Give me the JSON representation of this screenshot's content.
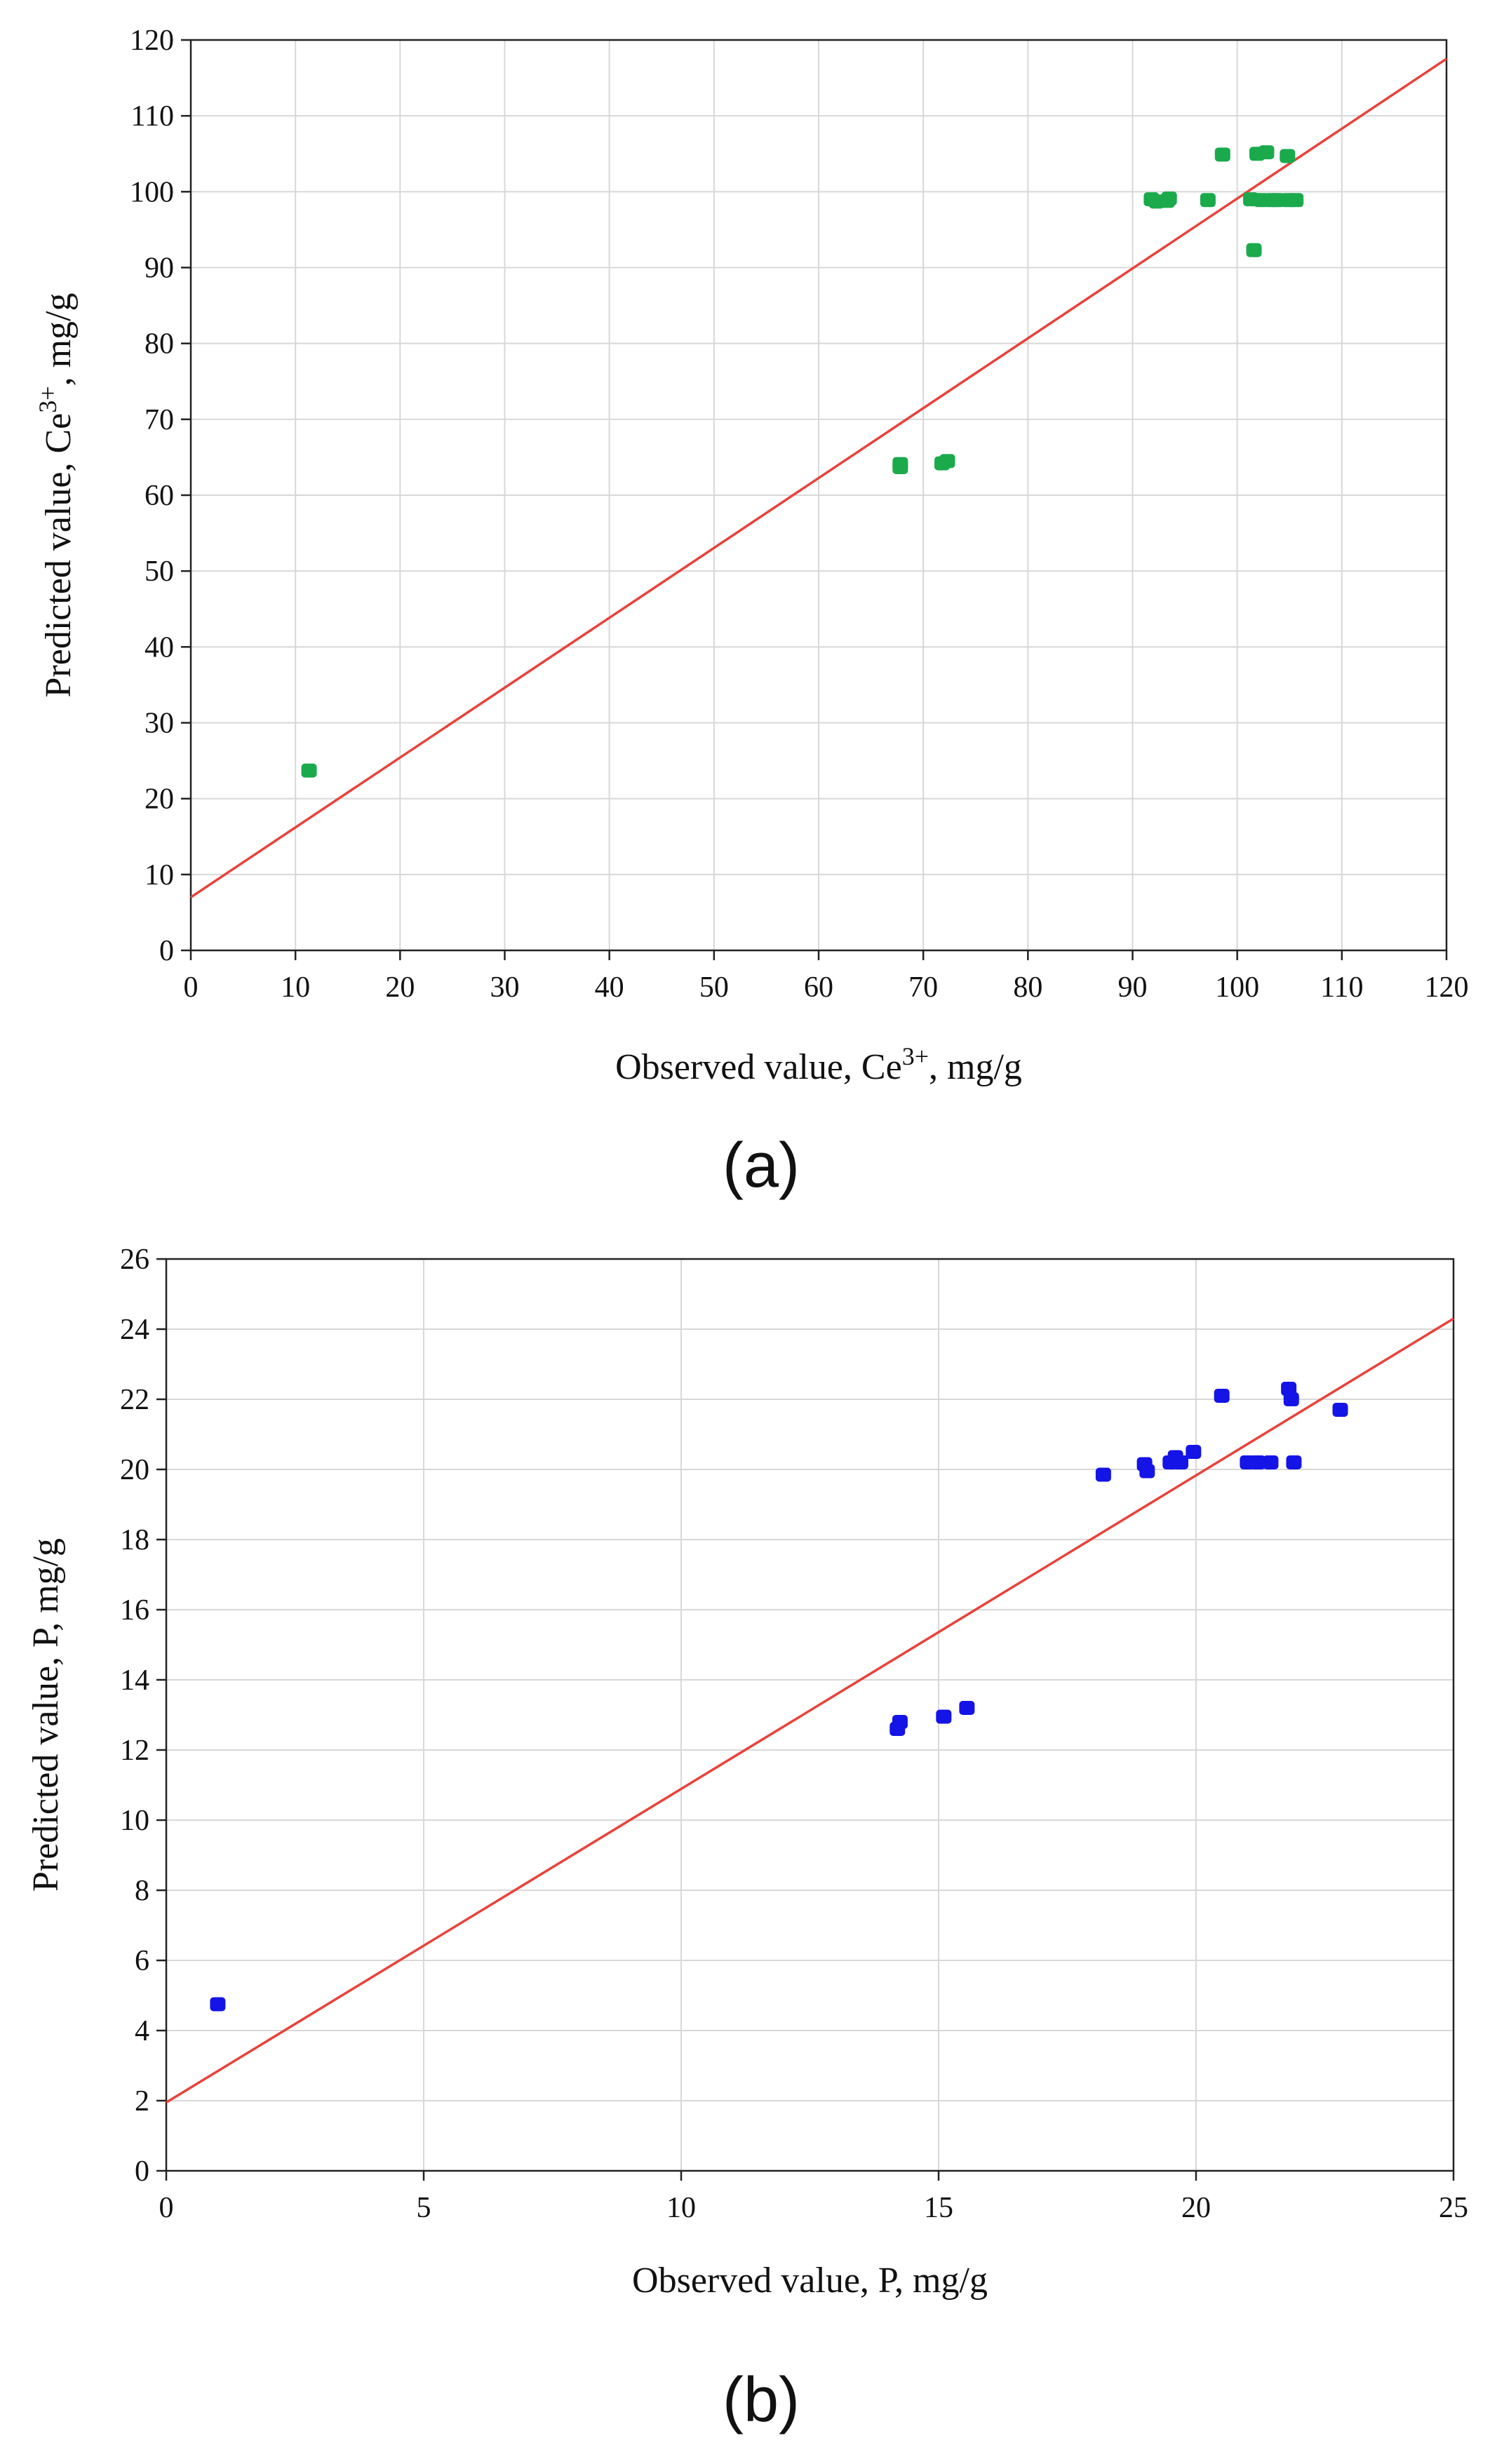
{
  "chart_data": [
    {
      "type": "scatter",
      "panel_label": "(a)",
      "title": "",
      "xlabel_main": "Observed value, Ce",
      "xlabel_sup": "3+",
      "xlabel_tail": ", mg/g",
      "ylabel_main": "Predicted value, Ce",
      "ylabel_sup": "3+",
      "ylabel_tail": ", mg/g",
      "xlim": [
        0,
        120
      ],
      "ylim": [
        0,
        120
      ],
      "xticks": [
        0,
        10,
        20,
        30,
        40,
        50,
        60,
        70,
        80,
        90,
        100,
        110,
        120
      ],
      "yticks": [
        0,
        10,
        20,
        30,
        40,
        50,
        60,
        70,
        80,
        90,
        100,
        110,
        120
      ],
      "grid": true,
      "point_color": "#1aaa4b",
      "line_color": "#e8423a",
      "fit_line": {
        "intercept": 7.0,
        "slope": 0.921
      },
      "series": [
        {
          "name": "Ce3+",
          "points": [
            [
              11.3,
              23.7
            ],
            [
              67.8,
              63.7
            ],
            [
              67.8,
              64.1
            ],
            [
              71.8,
              64.2
            ],
            [
              72.3,
              64.5
            ],
            [
              91.8,
              99.0
            ],
            [
              92.3,
              98.7
            ],
            [
              93.3,
              98.8
            ],
            [
              93.5,
              99.1
            ],
            [
              97.2,
              98.9
            ],
            [
              98.6,
              104.9
            ],
            [
              101.3,
              99.0
            ],
            [
              101.6,
              92.3
            ],
            [
              101.9,
              105.0
            ],
            [
              102.3,
              98.9
            ],
            [
              102.8,
              105.2
            ],
            [
              103.3,
              98.9
            ],
            [
              103.8,
              98.9
            ],
            [
              104.8,
              104.7
            ],
            [
              104.9,
              98.9
            ],
            [
              105.6,
              98.9
            ]
          ]
        }
      ]
    },
    {
      "type": "scatter",
      "panel_label": "(b)",
      "title": "",
      "xlabel_main": "Observed value, P, mg/g",
      "ylabel_main": "Predicted value, P, mg/g",
      "xlim": [
        0,
        25
      ],
      "ylim": [
        0,
        26
      ],
      "xticks": [
        0,
        5,
        10,
        15,
        20,
        25
      ],
      "yticks": [
        0,
        2,
        4,
        6,
        8,
        10,
        12,
        14,
        16,
        18,
        20,
        22,
        24,
        26
      ],
      "grid": true,
      "point_color": "#1414e6",
      "line_color": "#e8423a",
      "fit_line": {
        "intercept": 1.95,
        "slope": 0.894
      },
      "series": [
        {
          "name": "P",
          "points": [
            [
              1.0,
              4.75
            ],
            [
              14.2,
              12.6
            ],
            [
              14.25,
              12.8
            ],
            [
              15.1,
              12.95
            ],
            [
              15.55,
              13.2
            ],
            [
              18.2,
              19.85
            ],
            [
              19.0,
              20.15
            ],
            [
              19.05,
              19.95
            ],
            [
              19.5,
              20.2
            ],
            [
              19.6,
              20.35
            ],
            [
              19.7,
              20.2
            ],
            [
              19.95,
              20.5
            ],
            [
              20.5,
              22.1
            ],
            [
              21.0,
              20.2
            ],
            [
              21.2,
              20.2
            ],
            [
              21.45,
              20.2
            ],
            [
              21.8,
              22.3
            ],
            [
              21.85,
              22.0
            ],
            [
              21.9,
              20.2
            ],
            [
              22.8,
              21.7
            ]
          ]
        }
      ]
    }
  ]
}
